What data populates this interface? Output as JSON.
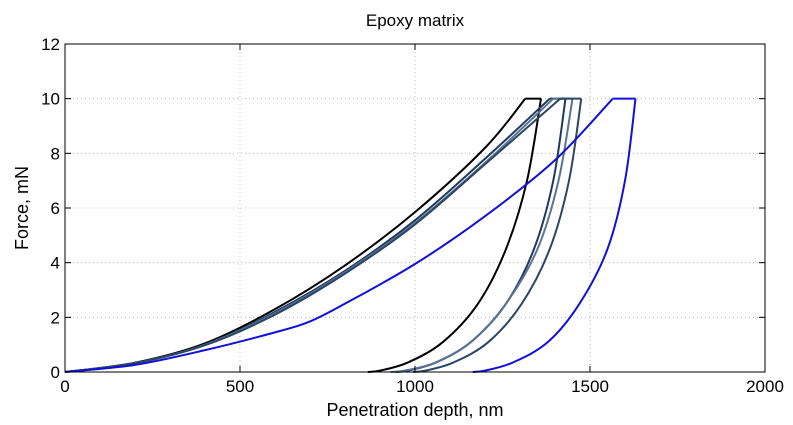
{
  "chart_data": {
    "type": "line",
    "title": "Epoxy matrix",
    "xlabel": "Penetration depth, nm",
    "ylabel": "Force, mN",
    "xlim": [
      0,
      2000
    ],
    "ylim": [
      0,
      12
    ],
    "xticks": [
      0,
      500,
      1000,
      1500,
      2000
    ],
    "yticks": [
      0,
      2,
      4,
      6,
      8,
      10,
      12
    ],
    "grid": true,
    "series": [
      {
        "color": "#000000",
        "loading": [
          [
            0,
            0
          ],
          [
            200,
            0.34
          ],
          [
            400,
            1.05
          ],
          [
            600,
            2.3
          ],
          [
            800,
            3.9
          ],
          [
            1000,
            5.85
          ],
          [
            1200,
            8.2
          ],
          [
            1315,
            10
          ]
        ],
        "hold": [
          [
            1315,
            10
          ],
          [
            1360,
            10
          ]
        ],
        "unloading": [
          [
            1360,
            10
          ],
          [
            1320,
            7
          ],
          [
            1260,
            4.5
          ],
          [
            1180,
            2.5
          ],
          [
            1080,
            1.1
          ],
          [
            980,
            0.35
          ],
          [
            900,
            0.05
          ],
          [
            865,
            0
          ]
        ]
      },
      {
        "color": "#1f3a5f",
        "loading": [
          [
            0,
            0
          ],
          [
            200,
            0.33
          ],
          [
            400,
            1.0
          ],
          [
            600,
            2.2
          ],
          [
            800,
            3.7
          ],
          [
            1000,
            5.55
          ],
          [
            1200,
            7.8
          ],
          [
            1385,
            10
          ]
        ],
        "hold": [
          [
            1385,
            10
          ],
          [
            1430,
            10
          ]
        ],
        "unloading": [
          [
            1430,
            10
          ],
          [
            1395,
            7
          ],
          [
            1340,
            4.5
          ],
          [
            1260,
            2.5
          ],
          [
            1160,
            1.1
          ],
          [
            1060,
            0.35
          ],
          [
            980,
            0.05
          ],
          [
            945,
            0
          ]
        ]
      },
      {
        "color": "#5a7394",
        "loading": [
          [
            0,
            0
          ],
          [
            200,
            0.32
          ],
          [
            400,
            1.0
          ],
          [
            600,
            2.15
          ],
          [
            800,
            3.65
          ],
          [
            1000,
            5.45
          ],
          [
            1200,
            7.65
          ],
          [
            1395,
            10
          ]
        ],
        "hold": [
          [
            1395,
            10
          ],
          [
            1450,
            10
          ]
        ],
        "unloading": [
          [
            1450,
            10
          ],
          [
            1410,
            7
          ],
          [
            1350,
            4.5
          ],
          [
            1260,
            2.5
          ],
          [
            1160,
            1.1
          ],
          [
            1060,
            0.35
          ],
          [
            970,
            0.05
          ],
          [
            930,
            0
          ]
        ]
      },
      {
        "color": "#2b4565",
        "loading": [
          [
            0,
            0
          ],
          [
            200,
            0.32
          ],
          [
            400,
            0.98
          ],
          [
            600,
            2.1
          ],
          [
            800,
            3.6
          ],
          [
            1000,
            5.4
          ],
          [
            1200,
            7.6
          ],
          [
            1415,
            10
          ]
        ],
        "hold": [
          [
            1415,
            10
          ],
          [
            1475,
            10
          ]
        ],
        "unloading": [
          [
            1475,
            10
          ],
          [
            1440,
            7
          ],
          [
            1385,
            4.5
          ],
          [
            1305,
            2.5
          ],
          [
            1210,
            1.1
          ],
          [
            1110,
            0.35
          ],
          [
            1030,
            0.05
          ],
          [
            995,
            0
          ]
        ]
      },
      {
        "color": "#1010dd",
        "loading": [
          [
            0,
            0
          ],
          [
            200,
            0.26
          ],
          [
            400,
            0.8
          ],
          [
            600,
            1.45
          ],
          [
            700,
            1.85
          ],
          [
            800,
            2.5
          ],
          [
            1000,
            3.95
          ],
          [
            1200,
            5.7
          ],
          [
            1400,
            7.75
          ],
          [
            1565,
            10
          ]
        ],
        "hold": [
          [
            1565,
            10
          ],
          [
            1630,
            10
          ]
        ],
        "unloading": [
          [
            1630,
            10
          ],
          [
            1600,
            7
          ],
          [
            1550,
            4.5
          ],
          [
            1470,
            2.5
          ],
          [
            1380,
            1.1
          ],
          [
            1280,
            0.35
          ],
          [
            1200,
            0.05
          ],
          [
            1165,
            0
          ]
        ]
      }
    ]
  }
}
